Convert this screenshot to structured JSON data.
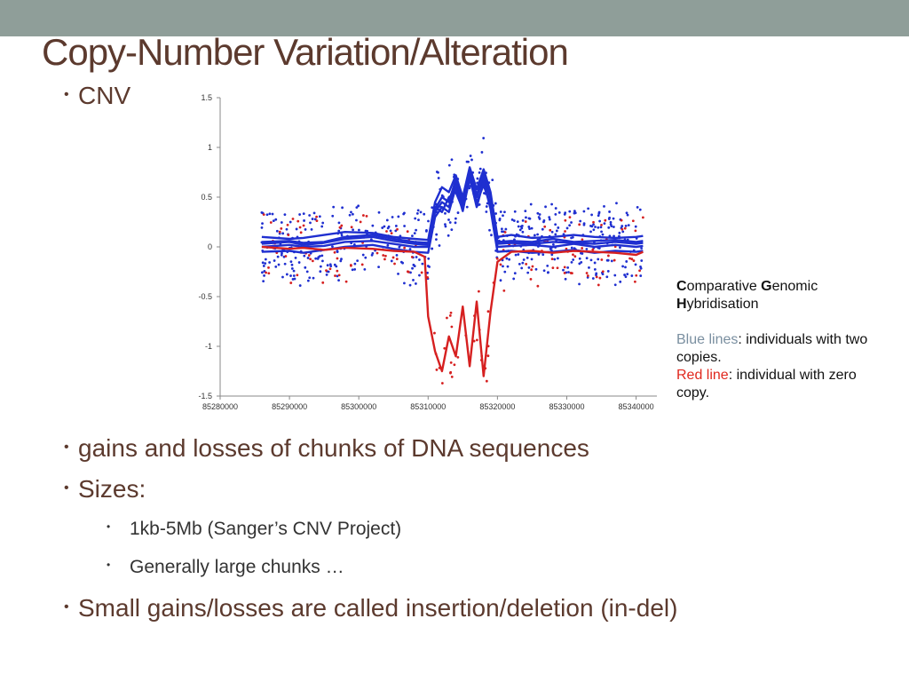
{
  "slide": {
    "title": "Copy-Number Variation/Alteration",
    "bullets": {
      "cnv": "CNV",
      "gains": "gains and losses of chunks of DNA sequences",
      "sizes": "Sizes:",
      "sub1": "1kb-5Mb (Sanger’s CNV Project)",
      "sub2": "Generally large chunks …",
      "small": "Small gains/losses are called insertion/deletion (in-del)"
    },
    "bullet_glyph": "•"
  },
  "annotation": {
    "cgh_c": "C",
    "cgh_omparative": "omparative ",
    "cgh_g": "G",
    "cgh_enomic": "enomic",
    "cgh_h": "H",
    "cgh_ybridisation": "ybridisation",
    "blue_label": "Blue lines",
    "blue_desc": ": individuals with two copies.",
    "red_label": "Red line",
    "red_desc": ": individual with zero copy.",
    "blue_label_color": "#7a8fa0",
    "red_label_color": "#e0281e"
  },
  "colors": {
    "title": "#5c3a2e",
    "topbar": "#8f9e99",
    "blue": "#1f2fd0",
    "red": "#d62020"
  },
  "chart_data": {
    "type": "line",
    "xlim": [
      85280000,
      85343000
    ],
    "ylim": [
      -1.5,
      1.5
    ],
    "xticks": [
      "85280000",
      "85290000",
      "85300000",
      "85310000",
      "85320000",
      "85330000",
      "85340000"
    ],
    "yticks": [
      "1.5",
      "1",
      "0.5",
      "0",
      "-0.5",
      "-1",
      "-1.5"
    ],
    "grid": false,
    "series": [
      {
        "color": "blue",
        "x": [
          85286000,
          85290000,
          85292000,
          85295000,
          85298000,
          85302000,
          85305000,
          85308000,
          85310000,
          85311000,
          85312000,
          85313000,
          85314000,
          85315000,
          85316000,
          85317000,
          85318000,
          85319000,
          85320000,
          85322000,
          85325000,
          85328000,
          85331000,
          85334000,
          85337000,
          85340000,
          85341000
        ],
        "y": [
          0.05,
          0.06,
          0.04,
          0.05,
          0.1,
          0.12,
          0.08,
          0.05,
          0.04,
          0.35,
          0.45,
          0.4,
          0.65,
          0.42,
          0.75,
          0.5,
          0.7,
          0.48,
          0.05,
          0.06,
          0.05,
          0.08,
          0.05,
          0.06,
          0.07,
          0.05,
          0.06
        ]
      },
      {
        "color": "blue",
        "x": [
          85286000,
          85290000,
          85292000,
          85295000,
          85298000,
          85302000,
          85305000,
          85308000,
          85310000,
          85311000,
          85312000,
          85313000,
          85314000,
          85315000,
          85316000,
          85317000,
          85318000,
          85319000,
          85320000,
          85322000,
          85325000,
          85328000,
          85331000,
          85334000,
          85337000,
          85340000,
          85341000
        ],
        "y": [
          0.0,
          0.02,
          0.0,
          0.01,
          0.05,
          0.06,
          0.03,
          0.0,
          0.0,
          0.4,
          0.35,
          0.5,
          0.55,
          0.38,
          0.68,
          0.45,
          0.62,
          0.42,
          0.0,
          0.01,
          0.02,
          0.0,
          0.03,
          0.0,
          0.02,
          0.0,
          0.01
        ]
      },
      {
        "color": "blue",
        "x": [
          85286000,
          85290000,
          85292000,
          85295000,
          85298000,
          85302000,
          85305000,
          85308000,
          85310000,
          85311000,
          85312000,
          85313000,
          85314000,
          85315000,
          85316000,
          85317000,
          85318000,
          85319000,
          85320000,
          85322000,
          85325000,
          85328000,
          85331000,
          85334000,
          85337000,
          85340000,
          85341000
        ],
        "y": [
          0.1,
          0.08,
          0.09,
          0.12,
          0.15,
          0.14,
          0.1,
          0.08,
          0.07,
          0.45,
          0.6,
          0.55,
          0.72,
          0.5,
          0.8,
          0.58,
          0.78,
          0.55,
          0.1,
          0.12,
          0.09,
          0.1,
          0.12,
          0.1,
          0.09,
          0.1,
          0.11
        ]
      },
      {
        "color": "blue",
        "x": [
          85286000,
          85290000,
          85292000,
          85295000,
          85298000,
          85302000,
          85305000,
          85308000,
          85310000,
          85311000,
          85312000,
          85313000,
          85314000,
          85315000,
          85316000,
          85317000,
          85318000,
          85319000,
          85320000,
          85322000,
          85325000,
          85328000,
          85331000,
          85334000,
          85337000,
          85340000,
          85341000
        ],
        "y": [
          -0.05,
          -0.04,
          -0.06,
          -0.03,
          0.0,
          0.02,
          -0.02,
          -0.05,
          -0.06,
          0.3,
          0.4,
          0.35,
          0.6,
          0.36,
          0.7,
          0.4,
          0.66,
          0.38,
          -0.05,
          -0.04,
          -0.06,
          -0.05,
          -0.03,
          -0.06,
          -0.04,
          -0.05,
          -0.04
        ]
      },
      {
        "color": "blue",
        "x": [
          85286000,
          85290000,
          85292000,
          85295000,
          85298000,
          85302000,
          85305000,
          85308000,
          85310000,
          85311000,
          85312000,
          85313000,
          85314000,
          85315000,
          85316000,
          85317000,
          85318000,
          85319000,
          85320000,
          85322000,
          85325000,
          85328000,
          85331000,
          85334000,
          85337000,
          85340000,
          85341000
        ],
        "y": [
          0.03,
          0.05,
          0.02,
          0.04,
          0.08,
          0.1,
          0.06,
          0.03,
          0.02,
          0.38,
          0.5,
          0.45,
          0.68,
          0.46,
          0.78,
          0.52,
          0.74,
          0.5,
          0.03,
          0.04,
          0.03,
          0.05,
          0.04,
          0.03,
          0.05,
          0.03,
          0.04
        ]
      },
      {
        "color": "red",
        "x": [
          85286000,
          85290000,
          85292000,
          85295000,
          85298000,
          85302000,
          85305000,
          85308000,
          85309500,
          85310000,
          85311000,
          85312000,
          85313000,
          85314000,
          85315000,
          85316000,
          85317000,
          85318000,
          85319000,
          85320000,
          85322000,
          85325000,
          85328000,
          85331000,
          85334000,
          85337000,
          85340000,
          85341000
        ],
        "y": [
          0.0,
          -0.02,
          -0.01,
          -0.03,
          -0.01,
          -0.02,
          -0.04,
          -0.05,
          -0.1,
          -0.7,
          -1.05,
          -1.25,
          -0.9,
          -1.1,
          -0.6,
          -1.2,
          -0.55,
          -1.3,
          -0.65,
          -0.15,
          -0.05,
          -0.04,
          -0.06,
          -0.04,
          -0.05,
          -0.06,
          -0.08,
          -0.05
        ]
      }
    ]
  }
}
